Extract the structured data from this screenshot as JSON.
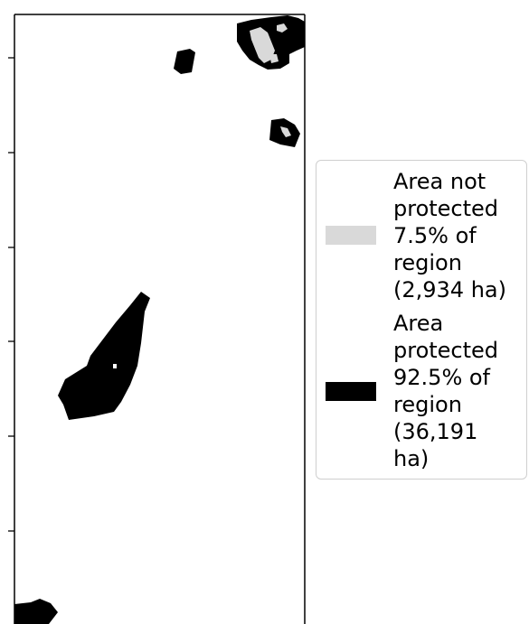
{
  "map": {
    "title": "",
    "colors": {
      "not_protected": "#d9d9d9",
      "protected": "#000000",
      "frame": "#000000",
      "background": "#ffffff"
    },
    "y_ticks": 6
  },
  "legend": {
    "entries": [
      {
        "swatch_color": "#d9d9d9",
        "lines": [
          "Area not",
          "protected",
          "7.5% of",
          "region",
          "(2,934 ha)"
        ]
      },
      {
        "swatch_color": "#000000",
        "lines": [
          "Area",
          "protected",
          "92.5% of",
          "region",
          "(36,191",
          "ha)"
        ]
      }
    ]
  }
}
